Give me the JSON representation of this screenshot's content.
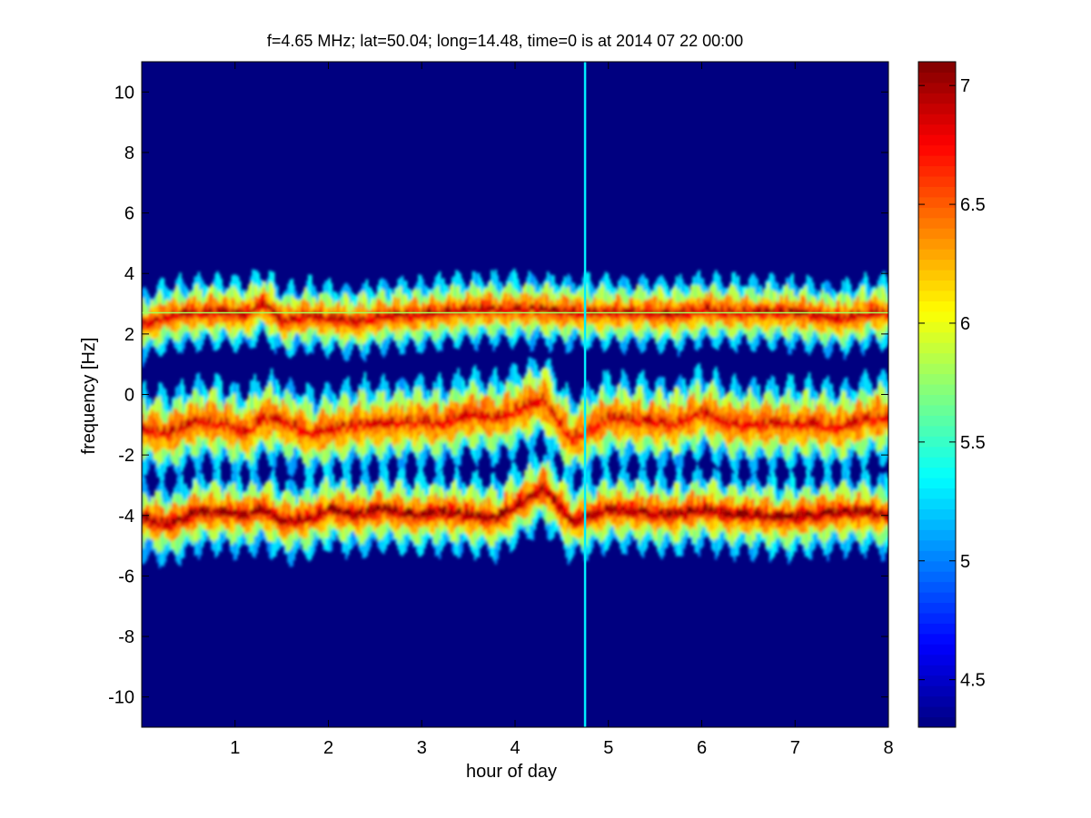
{
  "chart_data": {
    "type": "heatmap",
    "title": "f=4.65 MHz;  lat=50.04; long=14.48, time=0 is at 2014 07 22 00:00",
    "xlabel": "hour of day",
    "ylabel": "frequency [Hz]",
    "xlim": [
      0,
      8
    ],
    "ylim": [
      -11,
      11
    ],
    "xticks": [
      1,
      2,
      3,
      4,
      5,
      6,
      7,
      8
    ],
    "yticks": [
      10,
      8,
      6,
      4,
      2,
      0,
      -2,
      -4,
      -6,
      -8,
      -10
    ],
    "colorbar": {
      "colormap": "jet",
      "range": [
        4.3,
        7.1
      ],
      "ticks": [
        7,
        6.5,
        6,
        5.5,
        5,
        4.5
      ]
    },
    "background_value": 4.3,
    "bands": [
      {
        "name": "",
        "center_path": [
          [
            0,
            2.3
          ],
          [
            0.3,
            2.6
          ],
          [
            0.6,
            2.7
          ],
          [
            0.9,
            2.7
          ],
          [
            1.1,
            2.6
          ],
          [
            1.3,
            3.0
          ],
          [
            1.5,
            2.4
          ],
          [
            1.8,
            2.6
          ],
          [
            2.0,
            2.5
          ],
          [
            2.3,
            2.4
          ],
          [
            2.6,
            2.6
          ],
          [
            2.9,
            2.6
          ],
          [
            3.2,
            2.7
          ],
          [
            3.5,
            2.8
          ],
          [
            3.8,
            2.8
          ],
          [
            4.2,
            2.8
          ],
          [
            4.5,
            2.7
          ],
          [
            4.8,
            2.7
          ],
          [
            5.1,
            2.7
          ],
          [
            5.4,
            2.7
          ],
          [
            5.7,
            2.6
          ],
          [
            6.0,
            2.8
          ],
          [
            6.3,
            2.7
          ],
          [
            6.6,
            2.7
          ],
          [
            6.9,
            2.7
          ],
          [
            7.2,
            2.6
          ],
          [
            7.5,
            2.5
          ],
          [
            7.8,
            2.7
          ],
          [
            8.0,
            2.7
          ]
        ],
        "width": 0.4,
        "peak": 6.9
      },
      {
        "name": "",
        "center_path": [
          [
            0,
            -1.2
          ],
          [
            0.3,
            -1.3
          ],
          [
            0.6,
            -0.9
          ],
          [
            0.9,
            -1.0
          ],
          [
            1.1,
            -1.3
          ],
          [
            1.3,
            -0.8
          ],
          [
            1.5,
            -0.9
          ],
          [
            1.8,
            -1.3
          ],
          [
            2.0,
            -1.2
          ],
          [
            2.3,
            -1.0
          ],
          [
            2.6,
            -1.0
          ],
          [
            2.9,
            -0.9
          ],
          [
            3.2,
            -1.0
          ],
          [
            3.5,
            -0.7
          ],
          [
            3.8,
            -0.8
          ],
          [
            4.3,
            -0.2
          ],
          [
            4.6,
            -1.5
          ],
          [
            5.0,
            -0.8
          ],
          [
            5.4,
            -0.9
          ],
          [
            5.7,
            -1.0
          ],
          [
            6.0,
            -0.6
          ],
          [
            6.3,
            -1.0
          ],
          [
            6.6,
            -1.0
          ],
          [
            6.9,
            -1.0
          ],
          [
            7.2,
            -1.0
          ],
          [
            7.5,
            -1.1
          ],
          [
            7.8,
            -0.8
          ],
          [
            8.0,
            -0.8
          ]
        ],
        "width": 0.5,
        "peak": 6.8
      },
      {
        "name": "",
        "center_path": [
          [
            0,
            -4.1
          ],
          [
            0.3,
            -4.3
          ],
          [
            0.6,
            -3.9
          ],
          [
            0.9,
            -3.9
          ],
          [
            1.1,
            -4.0
          ],
          [
            1.3,
            -3.8
          ],
          [
            1.5,
            -4.2
          ],
          [
            1.8,
            -4.1
          ],
          [
            2.0,
            -3.8
          ],
          [
            2.3,
            -4.0
          ],
          [
            2.6,
            -3.8
          ],
          [
            2.9,
            -4.0
          ],
          [
            3.2,
            -3.9
          ],
          [
            3.5,
            -4.0
          ],
          [
            3.8,
            -4.1
          ],
          [
            4.3,
            -3.1
          ],
          [
            4.6,
            -4.2
          ],
          [
            5.0,
            -3.8
          ],
          [
            5.4,
            -3.9
          ],
          [
            5.7,
            -4.0
          ],
          [
            6.0,
            -3.8
          ],
          [
            6.3,
            -4.0
          ],
          [
            6.6,
            -4.0
          ],
          [
            6.9,
            -4.1
          ],
          [
            7.2,
            -4.0
          ],
          [
            7.5,
            -3.9
          ],
          [
            7.8,
            -3.9
          ],
          [
            8.0,
            -4.0
          ]
        ],
        "width": 0.45,
        "peak": 7.0
      }
    ],
    "horizontal_line": {
      "y": 2.7,
      "x_range": [
        0,
        8
      ],
      "value": 5.8
    },
    "vertical_line": {
      "x": 4.75,
      "y_range": [
        -11,
        11
      ],
      "value": 5.3
    }
  }
}
